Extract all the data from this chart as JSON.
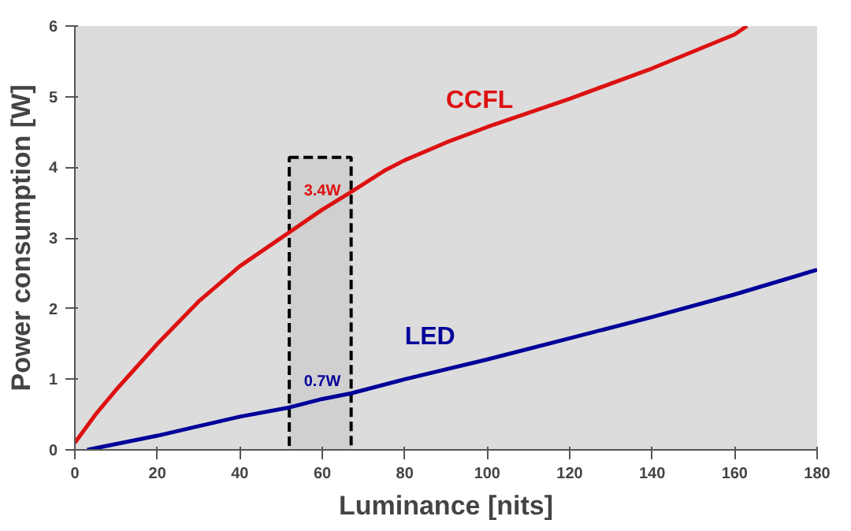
{
  "chart_data": {
    "type": "line",
    "xlabel": "Luminance [nits]",
    "ylabel": "Power consumption [W]",
    "xlim": [
      0,
      180
    ],
    "xticks": [
      0,
      20,
      40,
      60,
      80,
      100,
      120,
      140,
      160,
      180
    ],
    "ylim": [
      0,
      6
    ],
    "yticks": [
      0,
      1,
      2,
      3,
      4,
      5,
      6
    ],
    "grid": false,
    "marker": "none",
    "line_style": "solid",
    "series": [
      {
        "name": "CCFL",
        "color": "#dd1111",
        "x": [
          0,
          5,
          10,
          20,
          30,
          40,
          52,
          60,
          67,
          75,
          80,
          90,
          100,
          120,
          140,
          160,
          163
        ],
        "values": [
          0.1,
          0.5,
          0.85,
          1.5,
          2.1,
          2.6,
          3.08,
          3.4,
          3.65,
          3.95,
          4.1,
          4.35,
          4.57,
          4.97,
          5.4,
          5.88,
          6.0
        ]
      },
      {
        "name": "LED",
        "color": "#000099",
        "x": [
          3,
          20,
          40,
          52,
          60,
          67,
          80,
          100,
          120,
          140,
          160,
          180
        ],
        "values": [
          0,
          0.2,
          0.47,
          0.6,
          0.72,
          0.8,
          1.0,
          1.28,
          1.58,
          1.88,
          2.2,
          2.55
        ]
      }
    ],
    "bands": [
      {
        "axis": "x",
        "from": 52,
        "to": 67,
        "color": "#000000"
      }
    ],
    "annotations": [
      {
        "text": "3.4W",
        "x": 60,
        "y": 3.4
      },
      {
        "text": "0.7W",
        "x": 60,
        "y": 0.7
      }
    ]
  }
}
